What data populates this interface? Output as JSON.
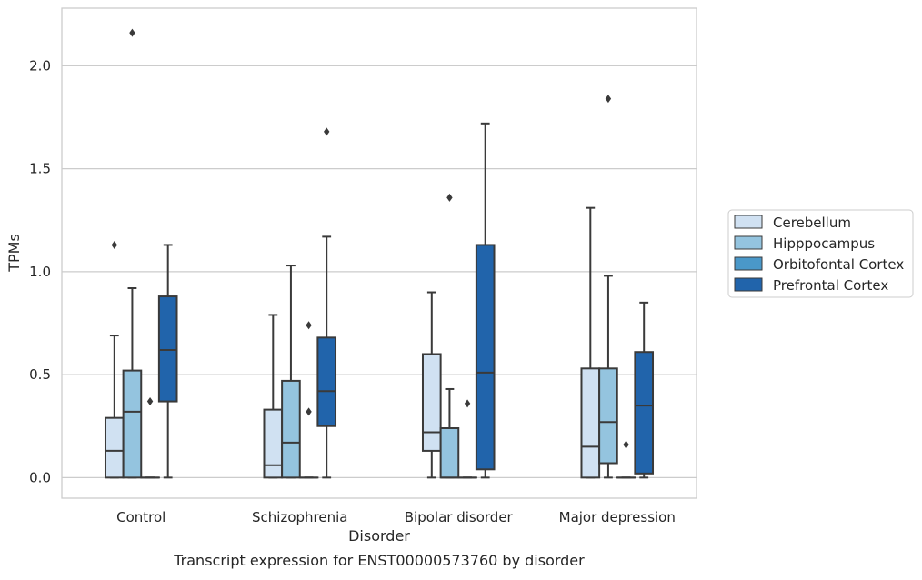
{
  "chart_data": {
    "type": "box",
    "title": "Transcript expression for ENST00000573760 by disorder",
    "xlabel": "Disorder",
    "ylabel": "TPMs",
    "ylim": [
      -0.1,
      2.28
    ],
    "yticks": [
      0.0,
      0.5,
      1.0,
      1.5,
      2.0
    ],
    "ytick_labels": [
      "0.0",
      "0.5",
      "1.0",
      "1.5",
      "2.0"
    ],
    "grid": "horizontal",
    "legend_position": "right",
    "categories": [
      "Control",
      "Schizophrenia",
      "Bipolar disorder",
      "Major depression"
    ],
    "series": [
      {
        "name": "Cerebellum",
        "color": "#d0e1f2",
        "boxes": [
          {
            "whisker_low": 0.0,
            "q1": 0.0,
            "median": 0.13,
            "q3": 0.29,
            "whisker_high": 0.69,
            "outliers": [
              1.13
            ]
          },
          {
            "whisker_low": 0.0,
            "q1": 0.0,
            "median": 0.06,
            "q3": 0.33,
            "whisker_high": 0.79,
            "outliers": []
          },
          {
            "whisker_low": 0.0,
            "q1": 0.13,
            "median": 0.22,
            "q3": 0.6,
            "whisker_high": 0.9,
            "outliers": []
          },
          {
            "whisker_low": 0.0,
            "q1": 0.0,
            "median": 0.15,
            "q3": 0.53,
            "whisker_high": 1.31,
            "outliers": []
          }
        ]
      },
      {
        "name": "Hipppocampus",
        "color": "#94c4df",
        "boxes": [
          {
            "whisker_low": 0.0,
            "q1": 0.0,
            "median": 0.32,
            "q3": 0.52,
            "whisker_high": 0.92,
            "outliers": [
              2.16
            ]
          },
          {
            "whisker_low": 0.0,
            "q1": 0.0,
            "median": 0.17,
            "q3": 0.47,
            "whisker_high": 1.03,
            "outliers": []
          },
          {
            "whisker_low": 0.0,
            "q1": 0.0,
            "median": 0.0,
            "q3": 0.24,
            "whisker_high": 0.43,
            "outliers": [
              1.36
            ]
          },
          {
            "whisker_low": 0.0,
            "q1": 0.07,
            "median": 0.27,
            "q3": 0.53,
            "whisker_high": 0.98,
            "outliers": [
              1.84
            ]
          }
        ]
      },
      {
        "name": "Orbitofontal Cortex",
        "color": "#4a98c9",
        "boxes": [
          {
            "whisker_low": 0.0,
            "q1": 0.0,
            "median": 0.0,
            "q3": 0.0,
            "whisker_high": 0.0,
            "outliers": [
              0.37
            ]
          },
          {
            "whisker_low": 0.0,
            "q1": 0.0,
            "median": 0.0,
            "q3": 0.0,
            "whisker_high": 0.0,
            "outliers": [
              0.32,
              0.74
            ]
          },
          {
            "whisker_low": 0.0,
            "q1": 0.0,
            "median": 0.0,
            "q3": 0.0,
            "whisker_high": 0.0,
            "outliers": [
              0.36
            ]
          },
          {
            "whisker_low": 0.0,
            "q1": 0.0,
            "median": 0.0,
            "q3": 0.0,
            "whisker_high": 0.0,
            "outliers": [
              0.16
            ]
          }
        ]
      },
      {
        "name": "Prefrontal Cortex",
        "color": "#2164ab",
        "boxes": [
          {
            "whisker_low": 0.0,
            "q1": 0.37,
            "median": 0.62,
            "q3": 0.88,
            "whisker_high": 1.13,
            "outliers": []
          },
          {
            "whisker_low": 0.0,
            "q1": 0.25,
            "median": 0.42,
            "q3": 0.68,
            "whisker_high": 1.17,
            "outliers": [
              1.68
            ]
          },
          {
            "whisker_low": 0.0,
            "q1": 0.04,
            "median": 0.51,
            "q3": 1.13,
            "whisker_high": 1.72,
            "outliers": []
          },
          {
            "whisker_low": 0.0,
            "q1": 0.02,
            "median": 0.35,
            "q3": 0.61,
            "whisker_high": 0.85,
            "outliers": []
          }
        ]
      }
    ]
  },
  "colors": {
    "grid": "#cccccc",
    "frame": "#cccccc",
    "line": "#3a3a3a",
    "text": "#262626"
  }
}
